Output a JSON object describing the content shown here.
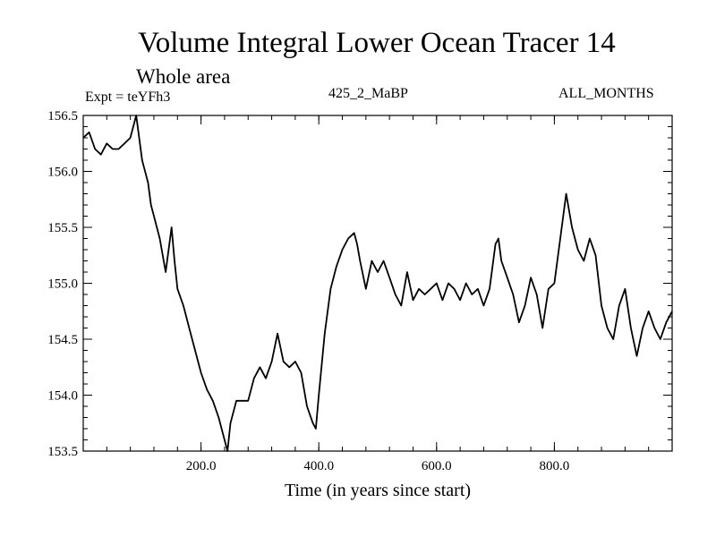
{
  "chart_data": {
    "type": "line",
    "title": "Volume Integral Lower Ocean Tracer 14",
    "subtitle": "Whole area",
    "experiment": "Expt = teYFh3",
    "run_label": "425_2_MaBP",
    "months_label": "ALL_MONTHS",
    "xlabel": "Time (in years since start)",
    "ylabel": "",
    "xlim": [
      0,
      1000
    ],
    "ylim": [
      153.5,
      156.5
    ],
    "xticks": [
      200,
      400,
      600,
      800
    ],
    "xtick_labels": [
      "200.0",
      "400.0",
      "600.0",
      "800.0"
    ],
    "yticks": [
      153.5,
      154.0,
      154.5,
      155.0,
      155.5,
      156.0,
      156.5
    ],
    "ytick_labels": [
      "153.5",
      "154.0",
      "154.5",
      "155.0",
      "155.5",
      "156.0",
      "156.5"
    ],
    "grid": false,
    "line_color": "#000000",
    "series": [
      {
        "name": "Tracer 14",
        "x": [
          0,
          10,
          20,
          30,
          40,
          50,
          60,
          70,
          80,
          90,
          100,
          110,
          115,
          120,
          130,
          140,
          150,
          155,
          160,
          170,
          180,
          190,
          200,
          210,
          220,
          230,
          240,
          245,
          250,
          260,
          270,
          280,
          290,
          300,
          310,
          320,
          330,
          340,
          350,
          360,
          370,
          380,
          390,
          395,
          400,
          410,
          420,
          430,
          440,
          450,
          460,
          465,
          470,
          480,
          490,
          500,
          510,
          520,
          530,
          540,
          550,
          560,
          570,
          580,
          590,
          600,
          610,
          620,
          630,
          640,
          650,
          660,
          670,
          680,
          690,
          700,
          705,
          710,
          720,
          730,
          740,
          750,
          760,
          770,
          780,
          790,
          800,
          810,
          820,
          830,
          840,
          850,
          860,
          870,
          880,
          890,
          900,
          910,
          920,
          930,
          940,
          950,
          960,
          970,
          980,
          990,
          1000
        ],
        "y": [
          156.3,
          156.35,
          156.2,
          156.15,
          156.25,
          156.2,
          156.2,
          156.25,
          156.3,
          156.5,
          156.1,
          155.9,
          155.7,
          155.6,
          155.4,
          155.1,
          155.5,
          155.2,
          154.95,
          154.8,
          154.6,
          154.4,
          154.2,
          154.05,
          153.95,
          153.8,
          153.6,
          153.5,
          153.75,
          153.95,
          153.95,
          153.95,
          154.15,
          154.25,
          154.15,
          154.3,
          154.55,
          154.3,
          154.25,
          154.3,
          154.2,
          153.9,
          153.75,
          153.7,
          154.0,
          154.55,
          154.95,
          155.15,
          155.3,
          155.4,
          155.45,
          155.35,
          155.2,
          154.95,
          155.2,
          155.1,
          155.2,
          155.05,
          154.9,
          154.8,
          155.1,
          154.85,
          154.95,
          154.9,
          154.95,
          155.0,
          154.85,
          155.0,
          154.95,
          154.85,
          155.0,
          154.9,
          154.95,
          154.8,
          154.95,
          155.35,
          155.4,
          155.2,
          155.05,
          154.9,
          154.65,
          154.8,
          155.05,
          154.9,
          154.6,
          154.95,
          155.0,
          155.4,
          155.8,
          155.5,
          155.3,
          155.2,
          155.4,
          155.25,
          154.8,
          154.6,
          154.5,
          154.8,
          154.95,
          154.6,
          154.35,
          154.6,
          154.75,
          154.6,
          154.5,
          154.65,
          154.75
        ]
      }
    ]
  }
}
